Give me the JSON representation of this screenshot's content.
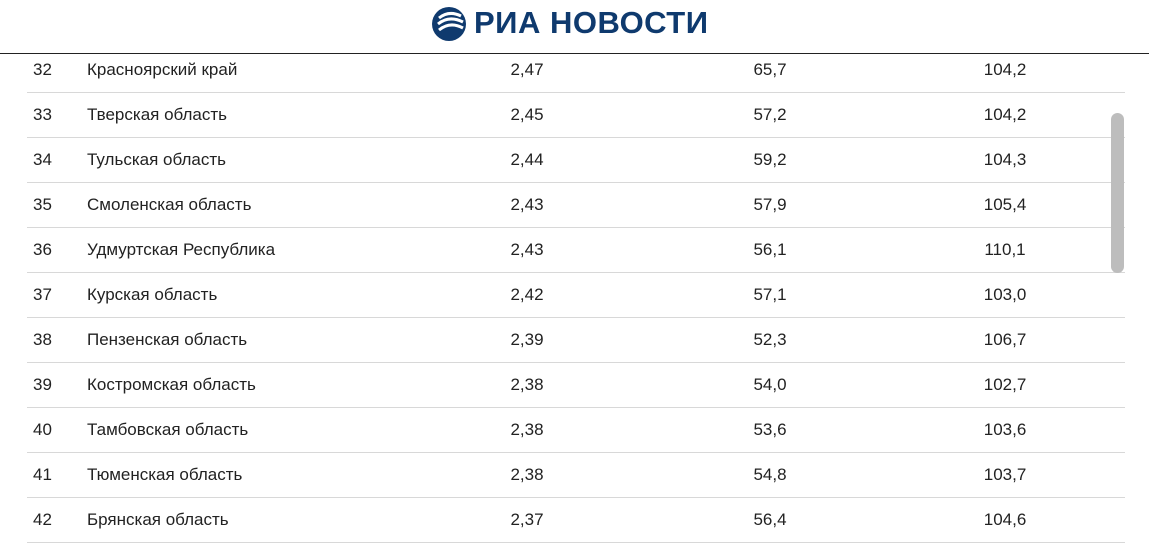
{
  "header": {
    "title": "РИА НОВОСТИ"
  },
  "table": {
    "rows": [
      [
        "32",
        "Красноярский край",
        "2,47",
        "65,7",
        "104,2"
      ],
      [
        "33",
        "Тверская область",
        "2,45",
        "57,2",
        "104,2"
      ],
      [
        "34",
        "Тульская область",
        "2,44",
        "59,2",
        "104,3"
      ],
      [
        "35",
        "Смоленская область",
        "2,43",
        "57,9",
        "105,4"
      ],
      [
        "36",
        "Удмуртская Республика",
        "2,43",
        "56,1",
        "110,1"
      ],
      [
        "37",
        "Курская область",
        "2,42",
        "57,1",
        "103,0"
      ],
      [
        "38",
        "Пензенская область",
        "2,39",
        "52,3",
        "106,7"
      ],
      [
        "39",
        "Костромская область",
        "2,38",
        "54,0",
        "102,7"
      ],
      [
        "40",
        "Тамбовская область",
        "2,38",
        "53,6",
        "103,6"
      ],
      [
        "41",
        "Тюменская область",
        "2,38",
        "54,8",
        "103,7"
      ],
      [
        "42",
        "Брянская область",
        "2,37",
        "56,4",
        "104,6"
      ]
    ]
  }
}
